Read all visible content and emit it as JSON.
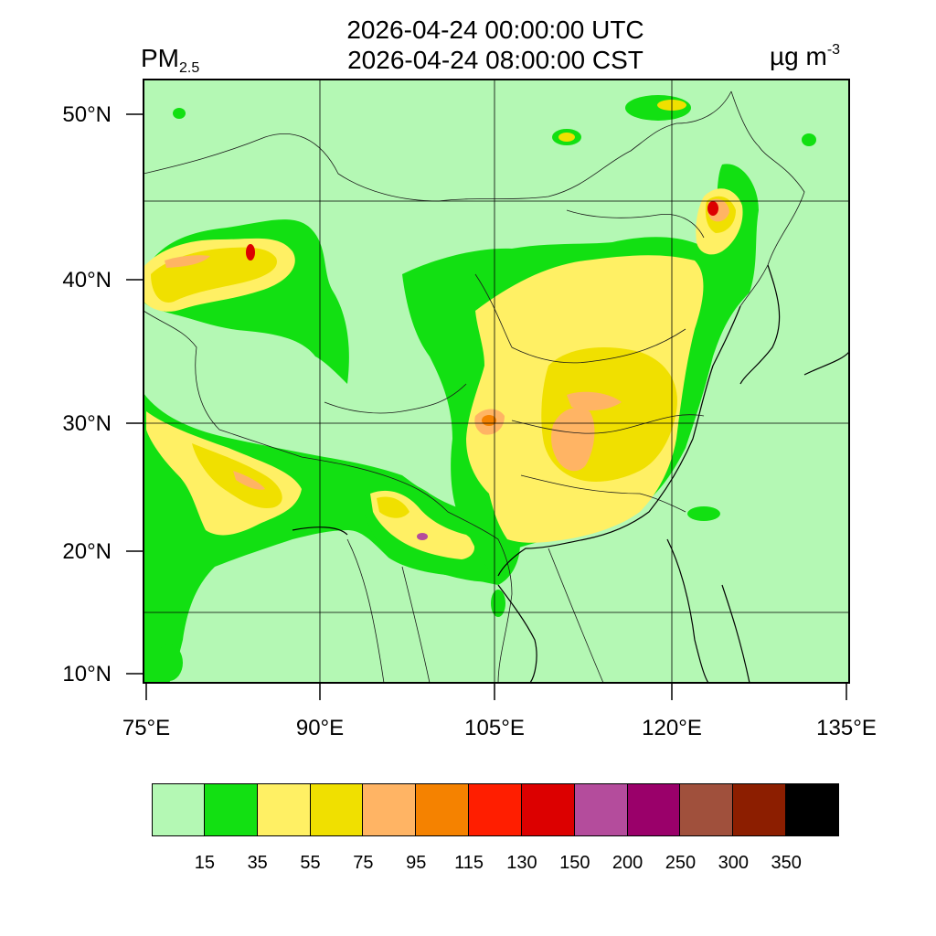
{
  "title": {
    "line1": "2026-04-24 00:00:00 UTC",
    "line2": "2026-04-24 08:00:00 CST"
  },
  "variable": {
    "name": "PM",
    "subscript": "2.5"
  },
  "units": {
    "base": "µg m",
    "exponent": "-3"
  },
  "map_axes": {
    "lat_labels": [
      "50°N",
      "40°N",
      "30°N",
      "20°N",
      "10°N"
    ],
    "lon_labels": [
      "75°E",
      "90°E",
      "105°E",
      "120°E",
      "135°E"
    ]
  },
  "colorbar": {
    "colors": [
      "#b4f8b4",
      "#12e012",
      "#fff064",
      "#f0e000",
      "#ffb464",
      "#f58200",
      "#ff1e00",
      "#dc0000",
      "#b44c9c",
      "#9a006a",
      "#a0503c",
      "#8c1e00",
      "#000000"
    ],
    "labels": [
      "15",
      "35",
      "55",
      "75",
      "95",
      "115",
      "130",
      "150",
      "200",
      "250",
      "300",
      "350"
    ]
  },
  "field_colors": {
    "background": "#b4f8b4",
    "level35": "#12e012",
    "level55": "#fff064",
    "level75": "#f0e000",
    "level95": "#ffb464",
    "level115": "#f58200",
    "level150": "#dc0000",
    "level200": "#b44c9c"
  }
}
